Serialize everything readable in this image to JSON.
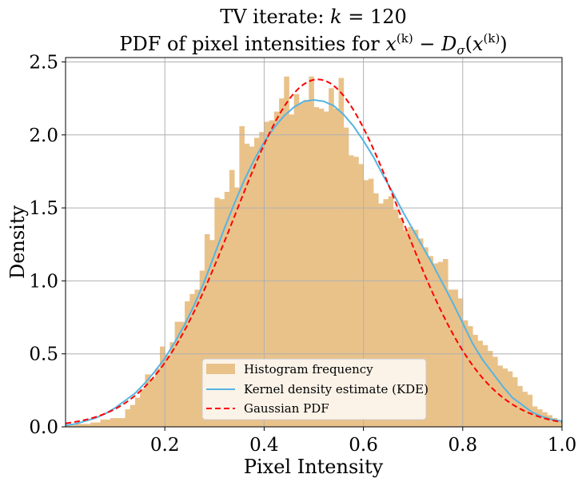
{
  "chart_data": {
    "type": "bar",
    "title": "TV iterate: k = 120",
    "subtitle": "PDF of pixel intensities for x(k) − Dσ(x(k))",
    "title_math": {
      "prefix": "TV iterate: ",
      "k": "k",
      "eq": " = 120"
    },
    "subtitle_math": {
      "prefix": "PDF of pixel intensities for ",
      "x": "x",
      "sup_k": "(k)",
      "minus": " − ",
      "D": "D",
      "sigma": "σ",
      "open": "(",
      "close": ")"
    },
    "xlabel": "Pixel Intensity",
    "ylabel": "Density",
    "xlim": [
      0.0,
      1.0
    ],
    "ylim": [
      0.0,
      2.53
    ],
    "xticks": [
      0.2,
      0.4,
      0.6,
      0.8,
      1.0
    ],
    "xtick_labels": [
      "0.2",
      "0.4",
      "0.6",
      "0.8",
      "1.0"
    ],
    "yticks": [
      0.0,
      0.5,
      1.0,
      1.5,
      2.0,
      2.5
    ],
    "ytick_labels": [
      "0.0",
      "0.5",
      "1.0",
      "1.5",
      "2.0",
      "2.5"
    ],
    "grid": true,
    "legend_position": "bottom-center",
    "colors": {
      "histogram": "#e9c28a",
      "kde": "#56b4e0",
      "gaussian": "#ff0000",
      "grid": "#b0b0b0"
    },
    "histogram": {
      "name": "Histogram frequency",
      "bin_edges_start": 0.0,
      "bin_width": 0.01,
      "values": [
        0.01,
        0.01,
        0.02,
        0.02,
        0.02,
        0.03,
        0.03,
        0.05,
        0.05,
        0.06,
        0.06,
        0.06,
        0.12,
        0.15,
        0.2,
        0.26,
        0.36,
        0.33,
        0.4,
        0.55,
        0.49,
        0.58,
        0.72,
        0.72,
        0.86,
        0.91,
        0.94,
        1.07,
        1.32,
        1.28,
        1.57,
        1.56,
        1.61,
        1.76,
        1.64,
        2.06,
        1.94,
        1.92,
        1.98,
        2.02,
        2.09,
        2.1,
        2.16,
        2.25,
        2.4,
        2.14,
        2.28,
        2.22,
        2.24,
        2.4,
        2.19,
        2.18,
        2.16,
        2.32,
        2.18,
        2.39,
        2.05,
        1.86,
        1.85,
        1.8,
        1.69,
        1.7,
        1.6,
        1.53,
        1.56,
        1.58,
        1.49,
        1.43,
        1.35,
        1.37,
        1.35,
        1.29,
        1.23,
        1.17,
        1.12,
        1.13,
        1.15,
        0.94,
        0.94,
        0.88,
        0.73,
        0.69,
        0.63,
        0.59,
        0.56,
        0.52,
        0.48,
        0.42,
        0.4,
        0.38,
        0.34,
        0.28,
        0.24,
        0.22,
        0.14,
        0.12,
        0.1,
        0.08,
        0.06,
        0.04
      ]
    },
    "kde": {
      "name": "Kernel density estimate (KDE)",
      "x": [
        0.0,
        0.02,
        0.04,
        0.06,
        0.08,
        0.1,
        0.12,
        0.14,
        0.16,
        0.18,
        0.2,
        0.22,
        0.24,
        0.26,
        0.28,
        0.3,
        0.32,
        0.34,
        0.36,
        0.38,
        0.4,
        0.42,
        0.44,
        0.46,
        0.48,
        0.5,
        0.52,
        0.54,
        0.56,
        0.58,
        0.6,
        0.62,
        0.64,
        0.66,
        0.68,
        0.7,
        0.72,
        0.74,
        0.76,
        0.78,
        0.8,
        0.82,
        0.84,
        0.86,
        0.88,
        0.9,
        0.92,
        0.94,
        0.96,
        0.98,
        1.0
      ],
      "y": [
        0.01,
        0.02,
        0.04,
        0.06,
        0.09,
        0.13,
        0.18,
        0.23,
        0.3,
        0.38,
        0.47,
        0.58,
        0.7,
        0.84,
        1.0,
        1.18,
        1.36,
        1.53,
        1.69,
        1.83,
        1.95,
        2.05,
        2.13,
        2.19,
        2.23,
        2.24,
        2.23,
        2.2,
        2.14,
        2.06,
        1.96,
        1.85,
        1.72,
        1.6,
        1.47,
        1.35,
        1.23,
        1.11,
        0.98,
        0.85,
        0.71,
        0.57,
        0.46,
        0.37,
        0.28,
        0.2,
        0.15,
        0.1,
        0.07,
        0.05,
        0.04
      ]
    },
    "gaussian": {
      "name": "Gaussian PDF",
      "mean": 0.508,
      "std": 0.1676
    }
  }
}
